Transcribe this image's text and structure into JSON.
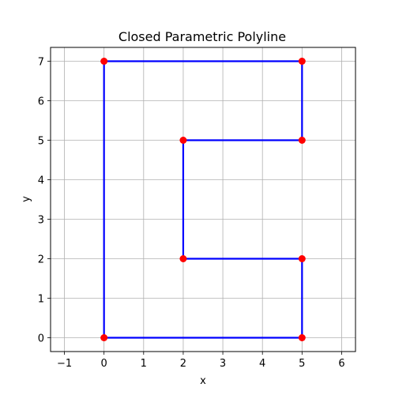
{
  "chart_data": {
    "type": "line",
    "title": "Closed Parametric Polyline",
    "xlabel": "x",
    "ylabel": "y",
    "xlim": [
      -1.35,
      6.35
    ],
    "ylim": [
      -0.35,
      7.35
    ],
    "xticks": [
      "−1",
      "0",
      "1",
      "2",
      "3",
      "4",
      "5",
      "6"
    ],
    "yticks": [
      "0",
      "1",
      "2",
      "3",
      "4",
      "5",
      "6",
      "7"
    ],
    "xtick_values": [
      -1,
      0,
      1,
      2,
      3,
      4,
      5,
      6
    ],
    "ytick_values": [
      0,
      1,
      2,
      3,
      4,
      5,
      6,
      7
    ],
    "grid": true,
    "closed": true,
    "points": [
      {
        "x": 0,
        "y": 0
      },
      {
        "x": 5,
        "y": 0
      },
      {
        "x": 5,
        "y": 2
      },
      {
        "x": 2,
        "y": 2
      },
      {
        "x": 2,
        "y": 5
      },
      {
        "x": 5,
        "y": 5
      },
      {
        "x": 5,
        "y": 7
      },
      {
        "x": 0,
        "y": 7
      }
    ],
    "line_color": "#0000ff",
    "marker_color": "#ff0000"
  }
}
